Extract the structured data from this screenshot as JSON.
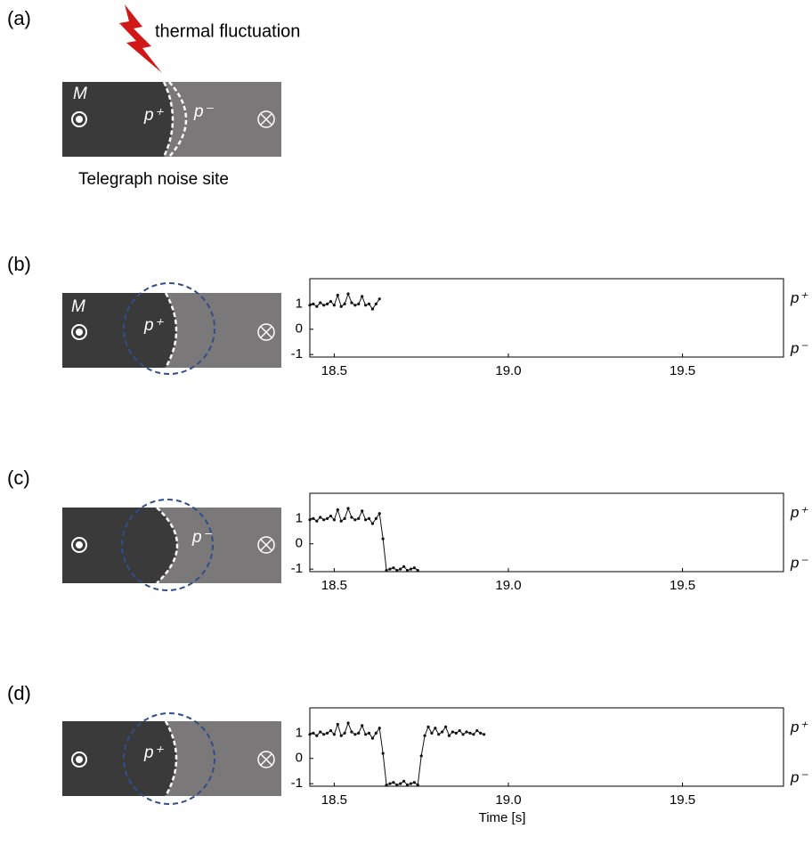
{
  "panels": {
    "a": {
      "label": "(a)",
      "annotation": "thermal fluctuation",
      "magnetization": "M",
      "left_state": "p⁺",
      "right_state": "p⁻",
      "caption": "Telegraph noise site"
    },
    "b": {
      "label": "(b)",
      "magnetization": "M",
      "state": "p⁺"
    },
    "c": {
      "label": "(c)",
      "state": "p⁻"
    },
    "d": {
      "label": "(d)",
      "state": "p⁺"
    }
  },
  "chart_data": [
    {
      "type": "line",
      "x": [
        18.43,
        18.44,
        18.45,
        18.46,
        18.47,
        18.48,
        18.49,
        18.5,
        18.51,
        18.52,
        18.53,
        18.54,
        18.55,
        18.56,
        18.57,
        18.58,
        18.59,
        18.6,
        18.61,
        18.62,
        18.63
      ],
      "series": [
        {
          "color": "#111111",
          "values": [
            0.95,
            1.0,
            0.9,
            1.05,
            0.95,
            1.0,
            1.1,
            0.95,
            1.35,
            0.9,
            1.0,
            1.4,
            1.05,
            0.95,
            1.0,
            1.3,
            0.95,
            1.0,
            0.8,
            1.0,
            1.2
          ]
        }
      ],
      "xlim": [
        18.43,
        19.79
      ],
      "ylim": [
        -1.1,
        2.0
      ],
      "xticks": [
        18.5,
        {
          "value": 19,
          "label": "19.0"
        },
        19.5
      ],
      "yticks": [
        1,
        0,
        -1
      ],
      "right_labels": [
        "p⁺",
        "p⁻"
      ]
    },
    {
      "type": "line",
      "x": [
        18.43,
        18.44,
        18.45,
        18.46,
        18.47,
        18.48,
        18.49,
        18.5,
        18.51,
        18.52,
        18.53,
        18.54,
        18.55,
        18.56,
        18.57,
        18.58,
        18.59,
        18.6,
        18.61,
        18.62,
        18.63,
        18.64,
        18.65,
        18.66,
        18.67,
        18.68,
        18.69,
        18.7,
        18.71,
        18.72,
        18.73,
        18.74
      ],
      "series": [
        {
          "color": "#111111",
          "values": [
            0.95,
            1.0,
            0.9,
            1.05,
            0.95,
            1.0,
            1.1,
            0.95,
            1.35,
            0.9,
            1.0,
            1.4,
            1.05,
            0.95,
            1.0,
            1.3,
            0.95,
            1.0,
            0.8,
            1.0,
            1.2,
            0.2,
            -1.05,
            -1.0,
            -0.95,
            -1.05,
            -1.0,
            -0.9,
            -1.05,
            -1.0,
            -0.95,
            -1.05
          ]
        }
      ],
      "xlim": [
        18.43,
        19.79
      ],
      "ylim": [
        -1.1,
        2.0
      ],
      "xticks": [
        18.5,
        {
          "value": 19,
          "label": "19.0"
        },
        19.5
      ],
      "yticks": [
        1,
        0,
        -1
      ],
      "right_labels": [
        "p⁺",
        "p⁻"
      ]
    },
    {
      "type": "line",
      "x": [
        18.43,
        18.44,
        18.45,
        18.46,
        18.47,
        18.48,
        18.49,
        18.5,
        18.51,
        18.52,
        18.53,
        18.54,
        18.55,
        18.56,
        18.57,
        18.58,
        18.59,
        18.6,
        18.61,
        18.62,
        18.63,
        18.64,
        18.65,
        18.66,
        18.67,
        18.68,
        18.69,
        18.7,
        18.71,
        18.72,
        18.73,
        18.74,
        18.75,
        18.76,
        18.77,
        18.78,
        18.79,
        18.8,
        18.81,
        18.82,
        18.83,
        18.84,
        18.85,
        18.86,
        18.87,
        18.88,
        18.89,
        18.9,
        18.91,
        18.92,
        18.93
      ],
      "series": [
        {
          "color": "#111111",
          "values": [
            0.95,
            1.0,
            0.9,
            1.05,
            0.95,
            1.0,
            1.1,
            0.95,
            1.35,
            0.9,
            1.0,
            1.4,
            1.05,
            0.95,
            1.0,
            1.3,
            0.95,
            1.0,
            0.8,
            1.0,
            1.2,
            0.2,
            -1.05,
            -1.0,
            -0.95,
            -1.05,
            -1.0,
            -0.9,
            -1.05,
            -1.0,
            -0.95,
            -1.05,
            0.1,
            0.9,
            1.25,
            1.0,
            1.2,
            0.95,
            1.05,
            1.25,
            0.9,
            1.05,
            1.0,
            1.1,
            0.95,
            1.05,
            1.0,
            0.95,
            1.1,
            1.0,
            0.95
          ]
        }
      ],
      "xlim": [
        18.43,
        19.79
      ],
      "ylim": [
        -1.1,
        2.0
      ],
      "xticks": [
        18.5,
        {
          "value": 19,
          "label": "19.0"
        },
        19.5
      ],
      "yticks": [
        1,
        0,
        -1
      ],
      "xlabel": "Time [s]",
      "right_labels": [
        "p⁺",
        "p⁻"
      ]
    }
  ]
}
